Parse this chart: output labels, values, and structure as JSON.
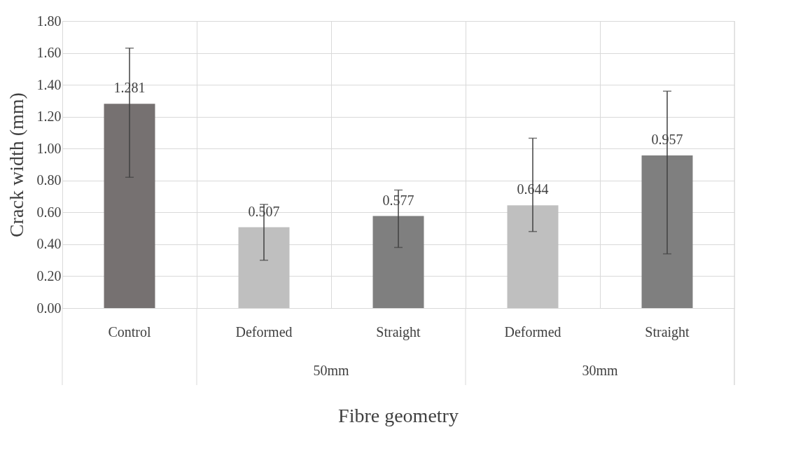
{
  "chart_data": {
    "type": "bar",
    "xlabel": "Fibre geometry",
    "ylabel": "Crack width (mm)",
    "categories": [
      "Control",
      "Deformed",
      "Straight",
      "Deformed",
      "Straight"
    ],
    "values": [
      1.281,
      0.507,
      0.577,
      0.644,
      0.957
    ],
    "colors": [
      "#767171",
      "#bfbfbf",
      "#7f7f7f",
      "#bfbfbf",
      "#7f7f7f"
    ],
    "errors": [
      [
        0.82,
        1.63
      ],
      [
        0.3,
        0.65
      ],
      [
        0.38,
        0.74
      ],
      [
        0.48,
        1.065
      ],
      [
        0.34,
        1.36
      ]
    ],
    "annotations": [
      "50mm",
      "30mm"
    ],
    "ylim": [
      0,
      1.8
    ],
    "yticks": [
      {
        "value": 0,
        "label": "0.00"
      },
      {
        "value": 0.2,
        "label": "0.20"
      },
      {
        "value": 0.4,
        "label": "0.40"
      },
      {
        "value": 0.6,
        "label": "0.60"
      },
      {
        "value": 0.8,
        "label": "0.80"
      },
      {
        "value": 1.0,
        "label": "1.00"
      },
      {
        "value": 1.2,
        "label": "1.20"
      },
      {
        "value": 1.4,
        "label": "1.40"
      },
      {
        "value": 1.6,
        "label": "1.60"
      },
      {
        "value": 1.8,
        "label": "1.80"
      }
    ],
    "grid": true,
    "data_labels": true
  }
}
